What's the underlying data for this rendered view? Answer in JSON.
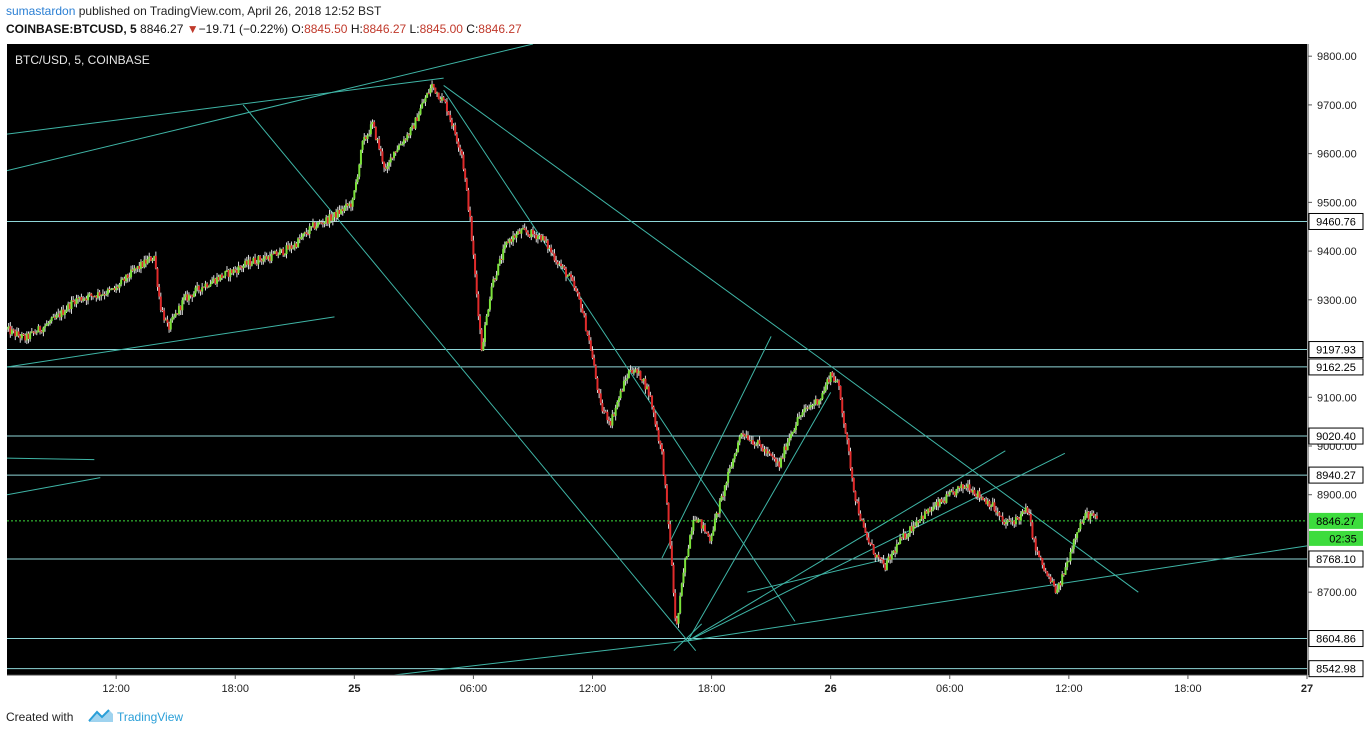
{
  "header": {
    "author": "sumastardon",
    "published_text": "published on TradingView.com, April 26, 2018 12:52 BST",
    "symbol": "COINBASE:BTCUSD, 5",
    "last": "8846.27",
    "change": "−19.71 (−0.22%)",
    "o_label": "O:",
    "o": "8845.50",
    "h_label": "H:",
    "h": "8846.27",
    "l_label": "L:",
    "l": "8845.00",
    "c_label": "C:",
    "c": "8846.27"
  },
  "footer": {
    "created_with": "Created with",
    "brand": "TradingView"
  },
  "chart_data": {
    "type": "candlestick",
    "title": "BTC/USD, 5, COINBASE",
    "ylim": [
      8530,
      9825
    ],
    "y_ticks": [
      9800,
      9700,
      9600,
      9500,
      9400,
      9300,
      9100,
      9000,
      8900,
      8700
    ],
    "y_tick_labels": [
      "9800.00",
      "9700.00",
      "9600.00",
      "9500.00",
      "9400.00",
      "9300.00",
      "9100.00",
      "9000.00",
      "8900.00",
      "8700.00"
    ],
    "time_range_hours": [
      6.5,
      57
    ],
    "x_ticks": [
      {
        "t": 12,
        "label": "12:00",
        "bold": false
      },
      {
        "t": 18,
        "label": "18:00",
        "bold": false
      },
      {
        "t": 24,
        "label": "25",
        "bold": true
      },
      {
        "t": 30,
        "label": "06:00",
        "bold": false
      },
      {
        "t": 36,
        "label": "12:00",
        "bold": false
      },
      {
        "t": 42,
        "label": "18:00",
        "bold": false
      },
      {
        "t": 48,
        "label": "26",
        "bold": true
      },
      {
        "t": 54,
        "label": "06:00",
        "bold": false
      },
      {
        "t": 60,
        "label": "12:00",
        "bold": false
      },
      {
        "t": 66,
        "label": "18:00",
        "bold": false
      },
      {
        "t": 72,
        "label": "27",
        "bold": true
      }
    ],
    "time_axis": {
      "t0": 6.5,
      "t1": 72,
      "x_end_t": 72
    },
    "price_levels": [
      {
        "value": 9460.76,
        "label": "9460.76"
      },
      {
        "value": 9197.93,
        "label": "9197.93"
      },
      {
        "value": 9162.25,
        "label": "9162.25"
      },
      {
        "value": 9020.4,
        "label": "9020.40"
      },
      {
        "value": 8940.27,
        "label": "8940.27"
      },
      {
        "value": 8768.1,
        "label": "8768.10"
      },
      {
        "value": 8604.86,
        "label": "8604.86"
      },
      {
        "value": 8542.98,
        "label": "8542.98"
      }
    ],
    "current_price": {
      "value": 8846.27,
      "label": "8846.27",
      "countdown": "02:35"
    },
    "price_path": [
      [
        6.5,
        9240
      ],
      [
        7.5,
        9220
      ],
      [
        9,
        9260
      ],
      [
        10,
        9300
      ],
      [
        11,
        9310
      ],
      [
        12,
        9320
      ],
      [
        13,
        9360
      ],
      [
        14,
        9390
      ],
      [
        14.3,
        9290
      ],
      [
        14.7,
        9240
      ],
      [
        15.5,
        9300
      ],
      [
        16.5,
        9330
      ],
      [
        18,
        9360
      ],
      [
        19,
        9380
      ],
      [
        20,
        9390
      ],
      [
        21,
        9410
      ],
      [
        22,
        9450
      ],
      [
        23,
        9470
      ],
      [
        24,
        9500
      ],
      [
        24.5,
        9620
      ],
      [
        25,
        9660
      ],
      [
        25.7,
        9560
      ],
      [
        26,
        9600
      ],
      [
        27,
        9650
      ],
      [
        27.5,
        9700
      ],
      [
        28,
        9740
      ],
      [
        28.7,
        9700
      ],
      [
        29.5,
        9600
      ],
      [
        29.9,
        9470
      ],
      [
        30.5,
        9200
      ],
      [
        31,
        9330
      ],
      [
        31.8,
        9420
      ],
      [
        32.5,
        9440
      ],
      [
        33.5,
        9430
      ],
      [
        34.3,
        9380
      ],
      [
        35,
        9340
      ],
      [
        35.5,
        9290
      ],
      [
        36,
        9200
      ],
      [
        36.5,
        9080
      ],
      [
        37,
        9050
      ],
      [
        37.6,
        9120
      ],
      [
        38,
        9160
      ],
      [
        38.6,
        9140
      ],
      [
        39,
        9100
      ],
      [
        39.6,
        8980
      ],
      [
        40,
        8800
      ],
      [
        40.3,
        8620
      ],
      [
        40.7,
        8750
      ],
      [
        41.2,
        8860
      ],
      [
        42,
        8810
      ],
      [
        42.5,
        8880
      ],
      [
        43,
        8950
      ],
      [
        43.6,
        9030
      ],
      [
        44.5,
        9000
      ],
      [
        45.5,
        8960
      ],
      [
        46,
        9020
      ],
      [
        46.5,
        9060
      ],
      [
        47,
        9080
      ],
      [
        47.6,
        9100
      ],
      [
        48.1,
        9150
      ],
      [
        48.5,
        9120
      ],
      [
        48.9,
        9010
      ],
      [
        49.3,
        8900
      ],
      [
        49.8,
        8820
      ],
      [
        50.3,
        8780
      ],
      [
        50.8,
        8750
      ],
      [
        51.5,
        8800
      ],
      [
        52.5,
        8850
      ],
      [
        53.5,
        8880
      ],
      [
        54.5,
        8910
      ],
      [
        55,
        8920
      ],
      [
        55.5,
        8900
      ],
      [
        56.2,
        8880
      ],
      [
        56.8,
        8840
      ],
      [
        57.5,
        8850
      ],
      [
        58,
        8870
      ],
      [
        58.4,
        8790
      ],
      [
        58.9,
        8740
      ],
      [
        59.5,
        8700
      ],
      [
        60,
        8760
      ],
      [
        60.5,
        8830
      ],
      [
        61,
        8860
      ],
      [
        61.5,
        8850
      ]
    ],
    "trend_lines": [
      {
        "p1": [
          6.5,
          9640
        ],
        "p2": [
          28.5,
          9755
        ]
      },
      {
        "p1": [
          6.5,
          9565
        ],
        "p2": [
          33,
          9825
        ]
      },
      {
        "p1": [
          6.5,
          9162
        ],
        "p2": [
          23,
          9265
        ]
      },
      {
        "p1": [
          6.5,
          8975
        ],
        "p2": [
          10.9,
          8972
        ]
      },
      {
        "p1": [
          6.5,
          8900
        ],
        "p2": [
          11.2,
          8935
        ]
      },
      {
        "p1": [
          18.4,
          9700
        ],
        "p2": [
          41.2,
          8580
        ]
      },
      {
        "p1": [
          28.5,
          9730
        ],
        "p2": [
          46.2,
          8640
        ]
      },
      {
        "p1": [
          28.5,
          9740
        ],
        "p2": [
          47.8,
          9170
        ]
      },
      {
        "p1": [
          47.8,
          9170
        ],
        "p2": [
          63.5,
          8700
        ]
      },
      {
        "p1": [
          40.8,
          8600
        ],
        "p2": [
          72,
          8795
        ]
      },
      {
        "p1": [
          26,
          8530
        ],
        "p2": [
          40.8,
          8600
        ]
      },
      {
        "p1": [
          40.8,
          8600
        ],
        "p2": [
          48,
          9110
        ]
      },
      {
        "p1": [
          40.8,
          8600
        ],
        "p2": [
          56.8,
          8990
        ]
      },
      {
        "p1": [
          40.8,
          8600
        ],
        "p2": [
          59.8,
          8985
        ]
      },
      {
        "p1": [
          39.5,
          8770
        ],
        "p2": [
          45,
          9225
        ]
      },
      {
        "p1": [
          43.8,
          8700
        ],
        "p2": [
          51,
          8770
        ]
      },
      {
        "p1": [
          40.1,
          8580
        ],
        "p2": [
          41.5,
          8635
        ]
      }
    ]
  }
}
